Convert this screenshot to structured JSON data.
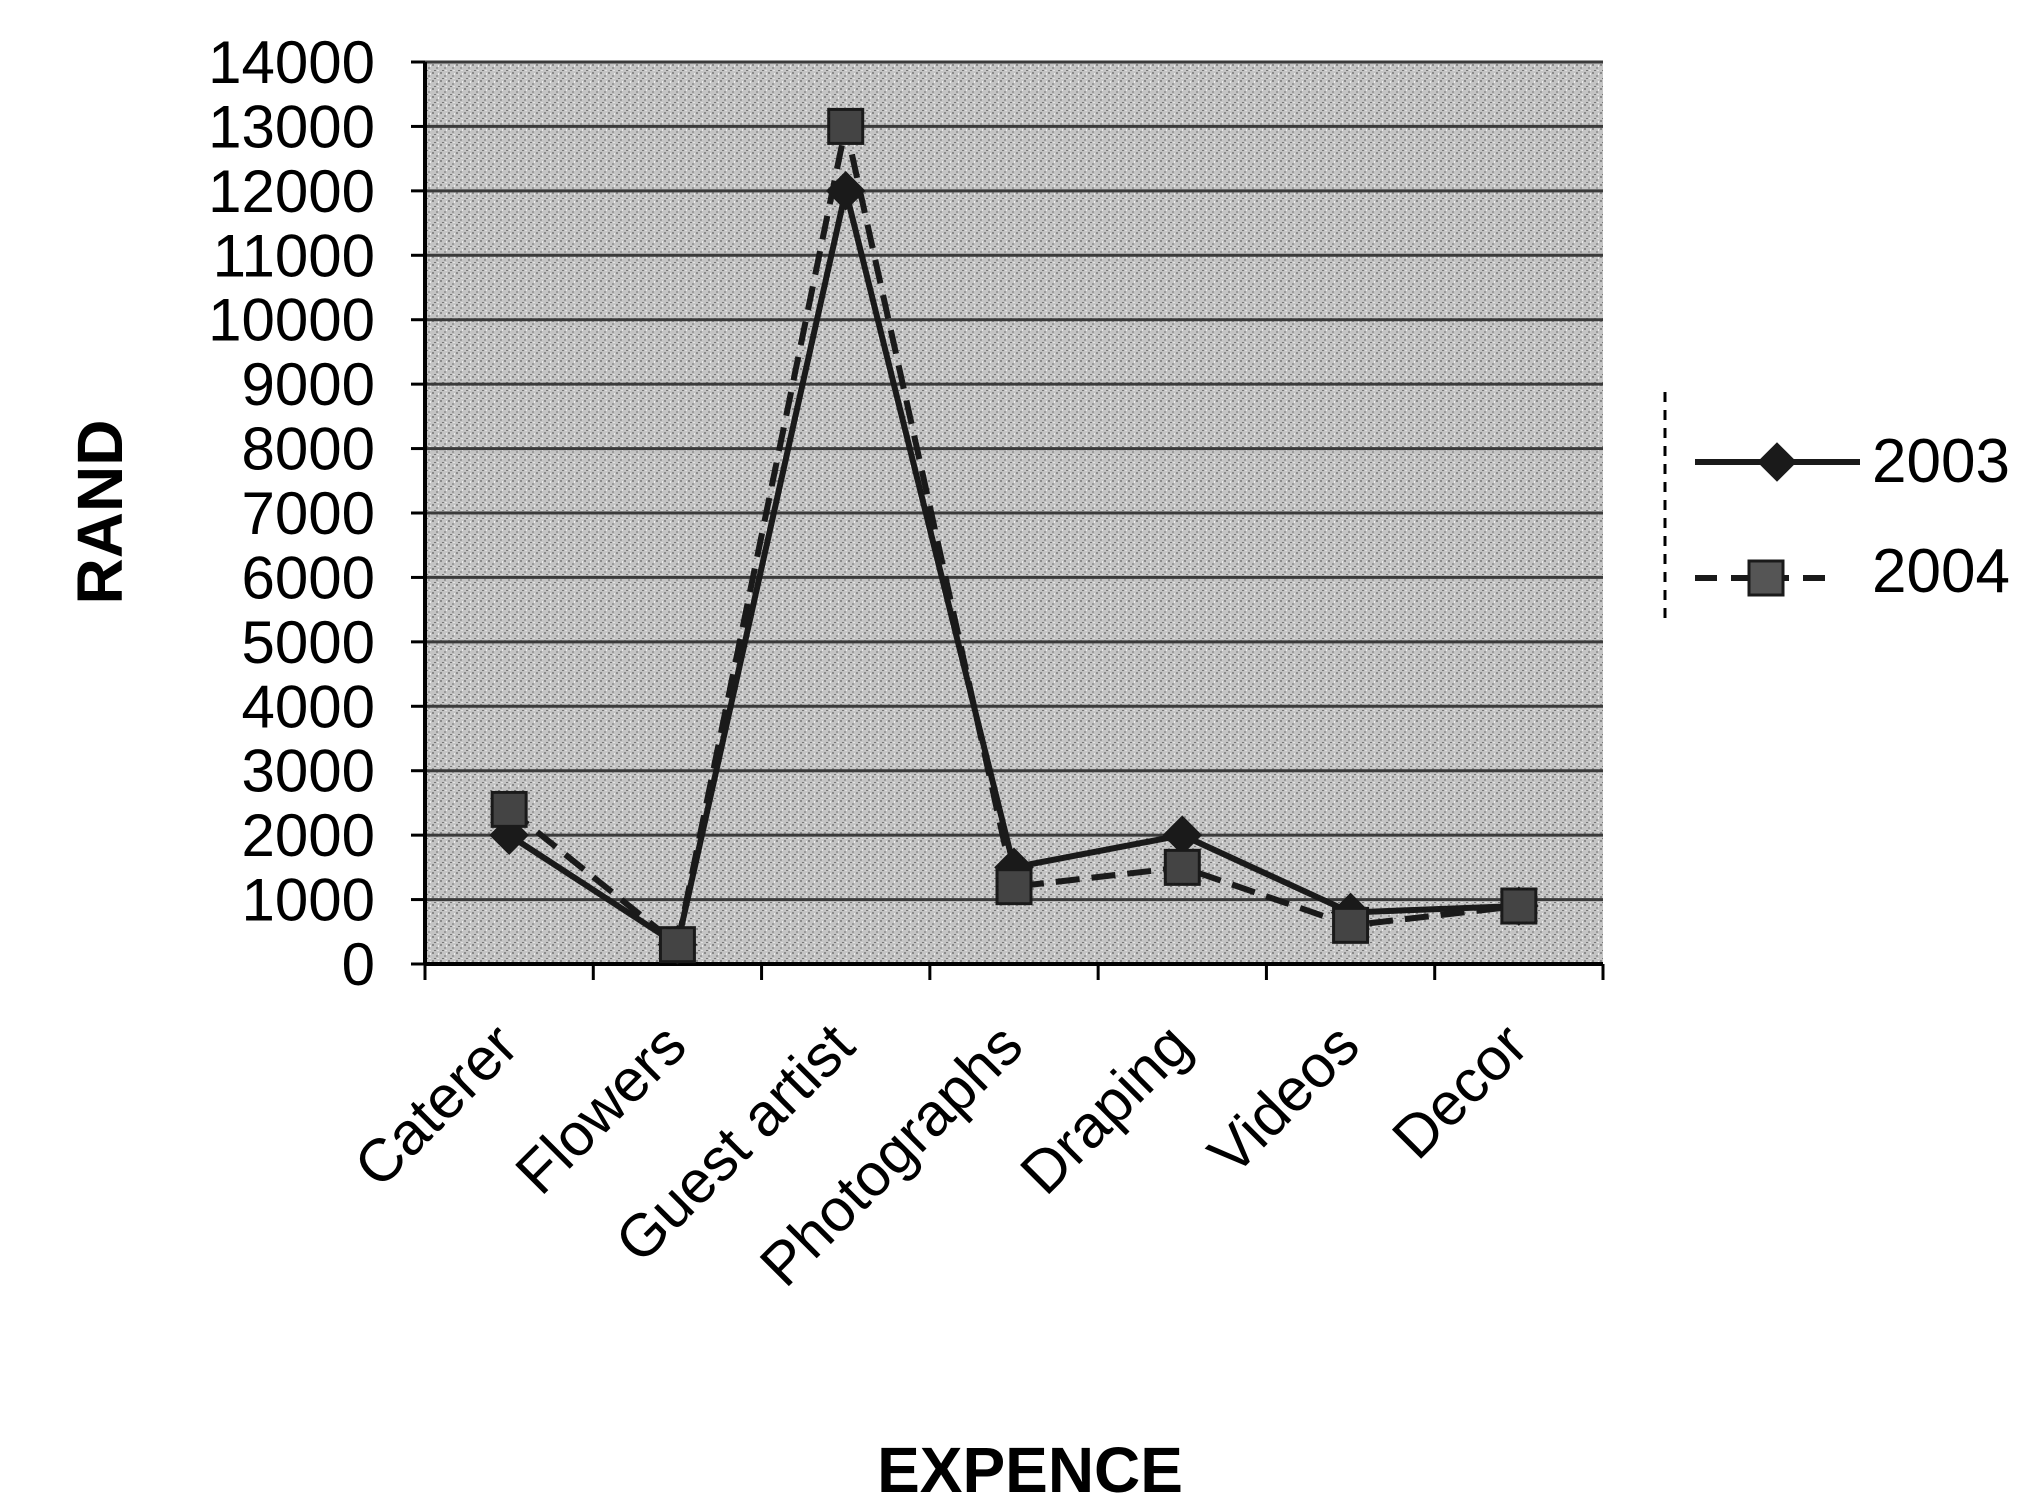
{
  "chart_data": {
    "type": "line",
    "categories": [
      "Caterer",
      "Flowers",
      "Guest artist",
      "Photographs",
      "Draping",
      "Videos",
      "Decor"
    ],
    "series": [
      {
        "name": "2003",
        "values": [
          2000,
          300,
          12000,
          1500,
          2000,
          800,
          900
        ],
        "style": "solid",
        "marker": "diamond"
      },
      {
        "name": "2004",
        "values": [
          2400,
          300,
          13000,
          1200,
          1500,
          600,
          900
        ],
        "style": "dashed",
        "marker": "square"
      }
    ],
    "xlabel": "EXPENCE",
    "ylabel": "RAND",
    "ylim": [
      0,
      14000
    ],
    "yticks": [
      0,
      1000,
      2000,
      3000,
      4000,
      5000,
      6000,
      7000,
      8000,
      9000,
      10000,
      11000,
      12000,
      13000,
      14000
    ],
    "grid": true,
    "legend_position": "right",
    "colors": {
      "plot_background": "#b8b8b8",
      "gridline": "#3a3a3a",
      "line": "#1a1a1a"
    }
  }
}
